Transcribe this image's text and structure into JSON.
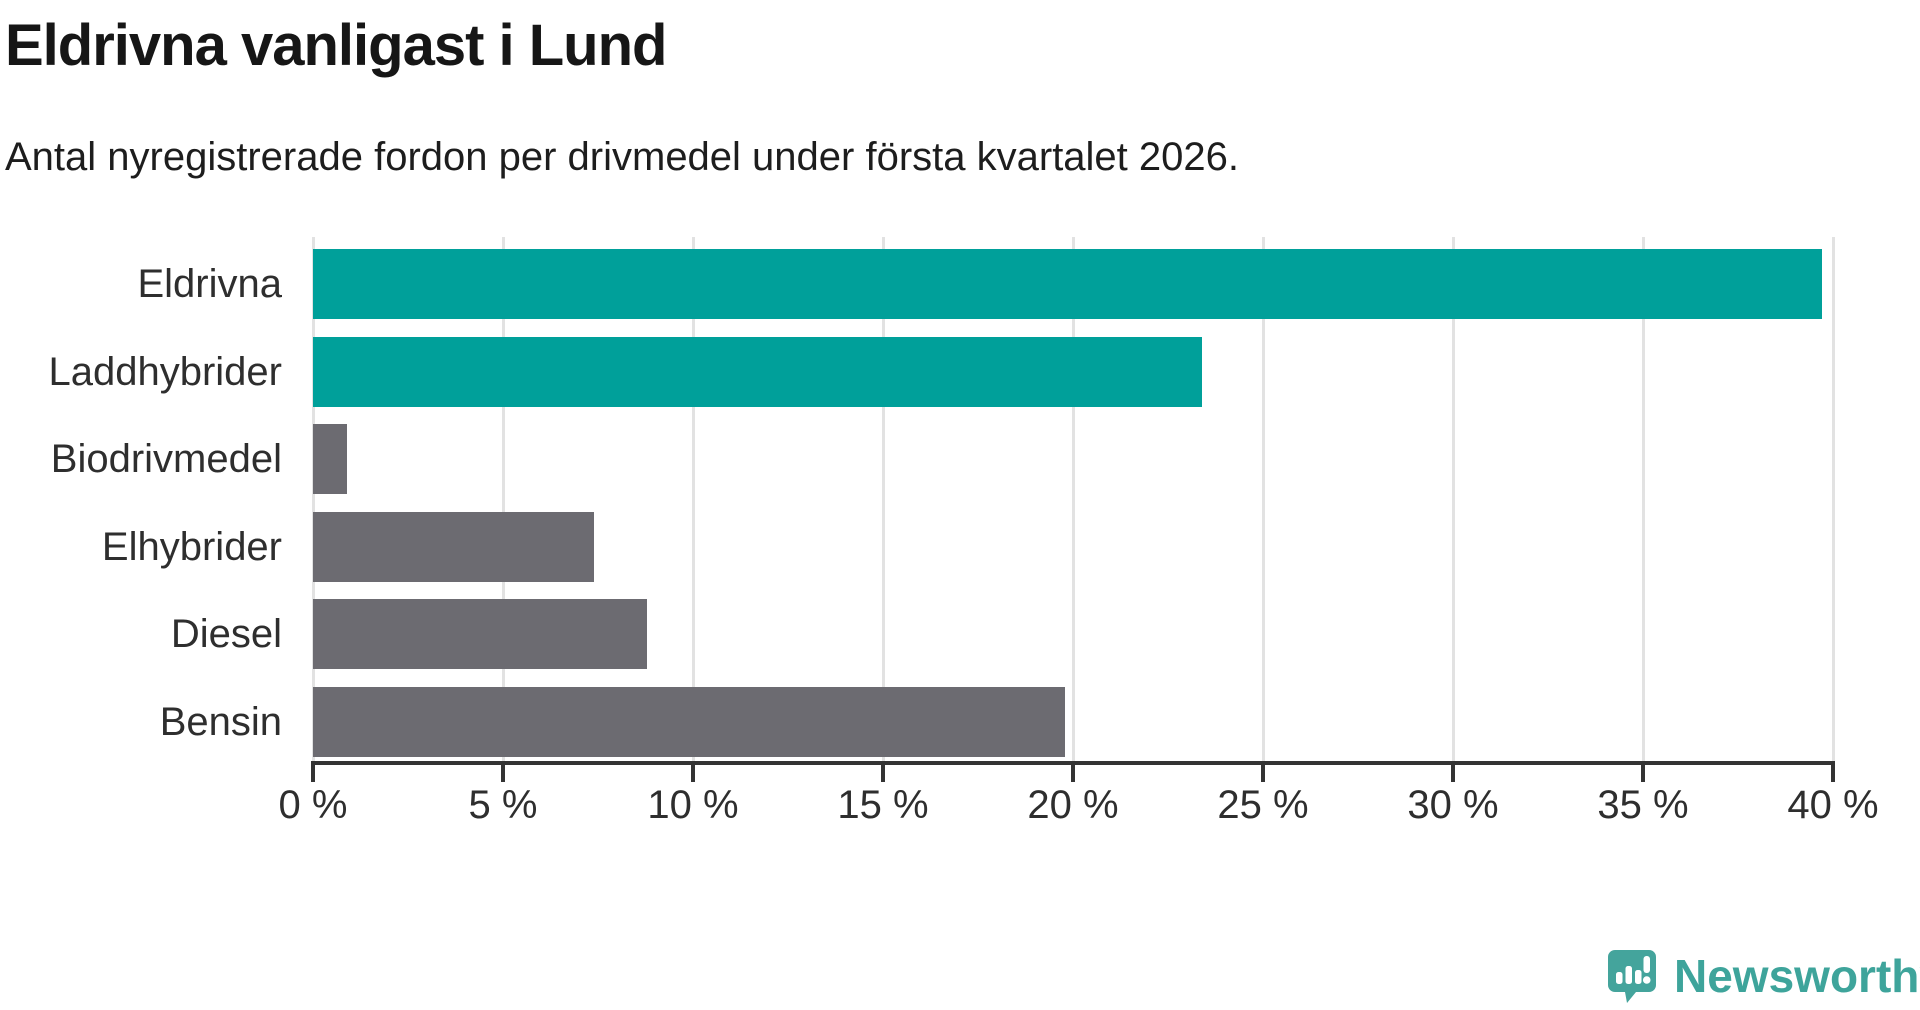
{
  "header": {
    "title": "Eldrivna vanligast i Lund",
    "subtitle": "Antal nyregistrerade fordon per drivmedel under första kvartalet 2026."
  },
  "branding": {
    "wordmark": "Newsworthy",
    "logo_icon": "speech-bubble-bar-chart-icon",
    "color": "#3ea49b"
  },
  "colors": {
    "bar_highlight": "#00a09a",
    "bar_default": "#6c6b71",
    "grid": "#e2e2e2",
    "axis": "#333333",
    "text": "#2e2e2e"
  },
  "chart_data": {
    "type": "bar",
    "orientation": "horizontal",
    "title": "Eldrivna vanligast i Lund",
    "subtitle": "Antal nyregistrerade fordon per drivmedel under första kvartalet 2026.",
    "categories": [
      "Eldrivna",
      "Laddhybrider",
      "Biodrivmedel",
      "Elhybrider",
      "Diesel",
      "Bensin"
    ],
    "values": [
      39.7,
      23.4,
      0.9,
      7.4,
      8.8,
      19.8
    ],
    "bar_colors": [
      "#00a09a",
      "#00a09a",
      "#6c6b71",
      "#6c6b71",
      "#6c6b71",
      "#6c6b71"
    ],
    "unit": "%",
    "xlabel": "",
    "ylabel": "",
    "xlim": [
      0,
      40
    ],
    "xticks": [
      0,
      5,
      10,
      15,
      20,
      25,
      30,
      35,
      40
    ],
    "xtick_labels": [
      "0 %",
      "5 %",
      "10 %",
      "15 %",
      "20 %",
      "25 %",
      "30 %",
      "35 %",
      "40 %"
    ],
    "grid": true,
    "legend": false
  }
}
